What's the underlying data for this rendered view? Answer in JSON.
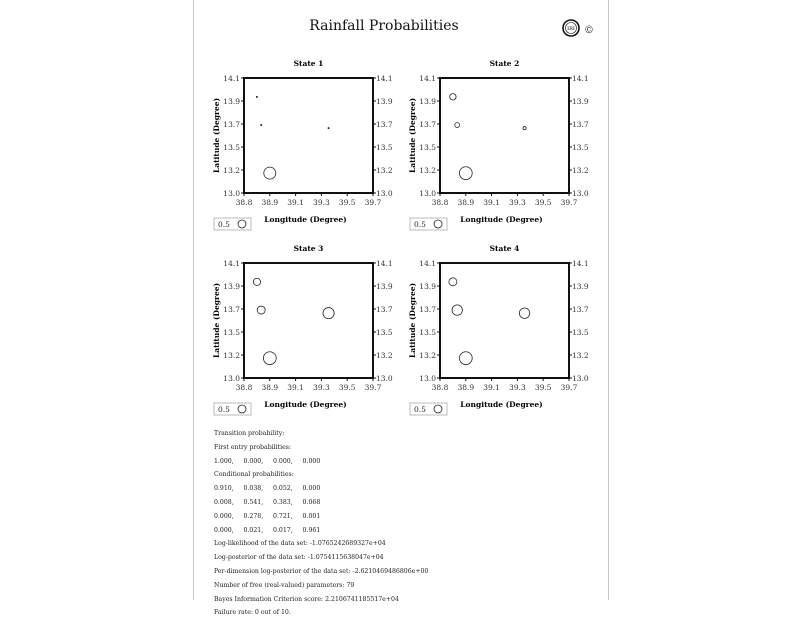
{
  "header": {
    "title": "Rainfall Probabilities",
    "logo_text": "IRI",
    "copyright": "©"
  },
  "chart_data": [
    {
      "type": "scatter",
      "title": "State 1",
      "xlabel": "Longitude (Degree)",
      "ylabel": "Latitude (Degree)",
      "xticks": [
        "38.8",
        "38.9",
        "39.1",
        "39.3",
        "39.5",
        "39.7"
      ],
      "yticks": [
        "14.1",
        "13.9",
        "13.7",
        "13.5",
        "13.2",
        "13.0"
      ],
      "xlim": [
        38.8,
        39.7
      ],
      "ylim": [
        13.0,
        14.1
      ],
      "legend": {
        "label": "0.5",
        "value": 0.5
      },
      "points": [
        {
          "lon": 38.89,
          "lat": 13.92,
          "p": 0.02
        },
        {
          "lon": 38.92,
          "lat": 13.65,
          "p": 0.02
        },
        {
          "lon": 39.39,
          "lat": 13.62,
          "p": 0.03
        },
        {
          "lon": 38.98,
          "lat": 13.19,
          "p": 0.75
        }
      ]
    },
    {
      "type": "scatter",
      "title": "State 2",
      "xlabel": "Longitude (Degree)",
      "ylabel": "Latitude (Degree)",
      "xticks": [
        "38.8",
        "38.9",
        "39.1",
        "39.3",
        "39.5",
        "39.7"
      ],
      "yticks": [
        "14.1",
        "13.9",
        "13.7",
        "13.5",
        "13.2",
        "13.0"
      ],
      "xlim": [
        38.8,
        39.7
      ],
      "ylim": [
        13.0,
        14.1
      ],
      "legend": {
        "label": "0.5",
        "value": 0.5
      },
      "points": [
        {
          "lon": 38.89,
          "lat": 13.92,
          "p": 0.4
        },
        {
          "lon": 38.92,
          "lat": 13.65,
          "p": 0.3
        },
        {
          "lon": 39.39,
          "lat": 13.62,
          "p": 0.2
        },
        {
          "lon": 38.98,
          "lat": 13.19,
          "p": 0.8
        }
      ]
    },
    {
      "type": "scatter",
      "title": "State 3",
      "xlabel": "Longitude (Degree)",
      "ylabel": "Latitude (Degree)",
      "xticks": [
        "38.8",
        "38.9",
        "39.1",
        "39.3",
        "39.5",
        "39.7"
      ],
      "yticks": [
        "14.1",
        "13.9",
        "13.7",
        "13.5",
        "13.2",
        "13.0"
      ],
      "xlim": [
        38.8,
        39.7
      ],
      "ylim": [
        13.0,
        14.1
      ],
      "legend": {
        "label": "0.5",
        "value": 0.5
      },
      "points": [
        {
          "lon": 38.89,
          "lat": 13.92,
          "p": 0.45
        },
        {
          "lon": 38.92,
          "lat": 13.65,
          "p": 0.5
        },
        {
          "lon": 39.39,
          "lat": 13.62,
          "p": 0.7
        },
        {
          "lon": 38.98,
          "lat": 13.19,
          "p": 0.8
        }
      ]
    },
    {
      "type": "scatter",
      "title": "State 4",
      "xlabel": "Longitude (Degree)",
      "ylabel": "Latitude (Degree)",
      "xticks": [
        "38.8",
        "38.9",
        "39.1",
        "39.3",
        "39.5",
        "39.7"
      ],
      "yticks": [
        "14.1",
        "13.9",
        "13.7",
        "13.5",
        "13.2",
        "13.0"
      ],
      "xlim": [
        38.8,
        39.7
      ],
      "ylim": [
        13.0,
        14.1
      ],
      "legend": {
        "label": "0.5",
        "value": 0.5
      },
      "points": [
        {
          "lon": 38.89,
          "lat": 13.92,
          "p": 0.5
        },
        {
          "lon": 38.92,
          "lat": 13.65,
          "p": 0.65
        },
        {
          "lon": 39.39,
          "lat": 13.62,
          "p": 0.65
        },
        {
          "lon": 38.98,
          "lat": 13.19,
          "p": 0.8
        }
      ]
    }
  ],
  "info": [
    "Transition probability:",
    "First entry probabilities:",
    "1.000,     0.000,     0.000,     0.000",
    "Conditional probabilities:",
    "0.910,     0.038,     0.052,     0.000",
    "0.008,     0.541,     0.383,     0.068",
    "0.000,     0.278,     0.721,     0.001",
    "0.000,     0.021,     0.017,     0.961",
    "Log-likelihood of the data set: -1.0765242689327e+04",
    "Log-posterior of the data set: -1.0754115638047e+04",
    "Per-dimension log-posterior of the data set: -2.6210469486806e+00",
    "Number of free (real-valued) parameters: 79",
    "Bayes Information Criterion score: 2.2106741185517e+04",
    "Failure rate: 0 out of 10."
  ]
}
